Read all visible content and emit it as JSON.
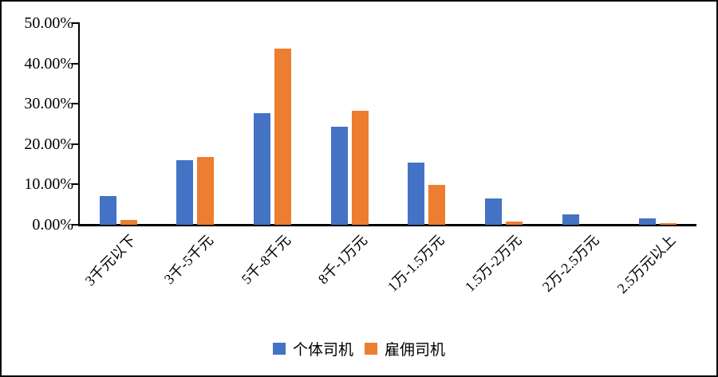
{
  "chart_data": {
    "type": "bar",
    "title": "",
    "xlabel": "",
    "ylabel": "",
    "categories": [
      "3千元以下",
      "3千-5千元",
      "5千-8千元",
      "8千-1万元",
      "1万-1.5万元",
      "1.5万-2万元",
      "2万-2.5万元",
      "2.5万元以上"
    ],
    "series": [
      {
        "name": "个体司机",
        "color": "#4472C4",
        "values": [
          7.1,
          16.0,
          27.6,
          24.3,
          15.4,
          6.5,
          2.5,
          1.5
        ]
      },
      {
        "name": "雇佣司机",
        "color": "#ED7D31",
        "values": [
          1.2,
          16.8,
          43.6,
          28.3,
          9.8,
          0.8,
          0.0,
          0.3
        ]
      }
    ],
    "y_axis": {
      "min": 0,
      "max": 50,
      "step": 10,
      "tick_labels": [
        "50.00%",
        "40.00%",
        "30.00%",
        "20.00%",
        "10.00%",
        "0.00%"
      ]
    },
    "legend_position": "bottom",
    "grid": false,
    "axis_color": "#000000",
    "background_color": "#ffffff",
    "border_color": "#0a0a0a"
  }
}
